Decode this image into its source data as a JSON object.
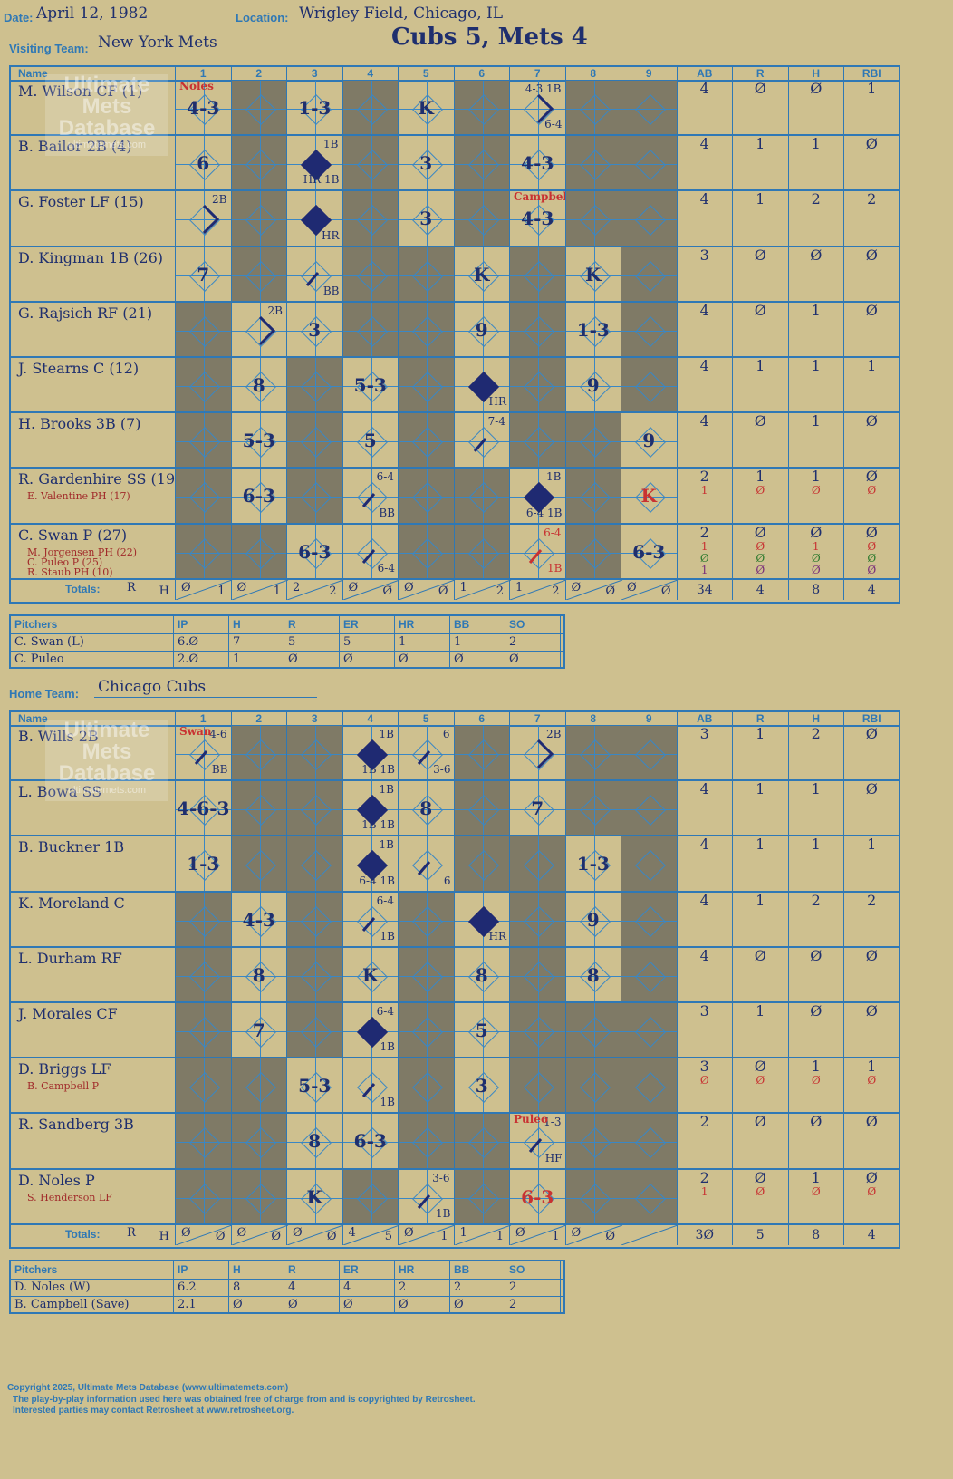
{
  "header": {
    "date_label": "Date:",
    "date": "April 12, 1982",
    "location_label": "Location:",
    "location": "Wrigley Field, Chicago, IL",
    "visiting_label": "Visiting Team:",
    "visiting_team": "New York Mets",
    "score_title": "Cubs 5, Mets 4",
    "home_label": "Home Team:",
    "home_team": "Chicago Cubs"
  },
  "columns": {
    "name": "Name",
    "innings": [
      "1",
      "2",
      "3",
      "4",
      "5",
      "6",
      "7",
      "8",
      "9"
    ],
    "stats": [
      "AB",
      "R",
      "H",
      "RBI"
    ]
  },
  "watermark": {
    "line1": "Ultimate",
    "line2": "Mets",
    "line3": "Database",
    "url": "ultimatemets.com"
  },
  "visitors": {
    "rows": [
      {
        "name": "M. Wilson CF (1)",
        "subs": [],
        "stats": [
          [
            "4"
          ],
          [
            "Ø"
          ],
          [
            "Ø"
          ],
          [
            "1"
          ]
        ]
      },
      {
        "name": "B. Bailor 2B (4)",
        "subs": [],
        "stats": [
          [
            "4"
          ],
          [
            "1"
          ],
          [
            "1"
          ],
          [
            "Ø"
          ]
        ]
      },
      {
        "name": "G. Foster LF (15)",
        "subs": [],
        "stats": [
          [
            "4"
          ],
          [
            "1"
          ],
          [
            "2"
          ],
          [
            "2"
          ]
        ]
      },
      {
        "name": "D. Kingman 1B (26)",
        "subs": [],
        "stats": [
          [
            "3"
          ],
          [
            "Ø"
          ],
          [
            "Ø"
          ],
          [
            "Ø"
          ]
        ]
      },
      {
        "name": "G. Rajsich RF (21)",
        "subs": [],
        "stats": [
          [
            "4"
          ],
          [
            "Ø"
          ],
          [
            "1"
          ],
          [
            "Ø"
          ]
        ]
      },
      {
        "name": "J. Stearns C (12)",
        "subs": [],
        "stats": [
          [
            "4"
          ],
          [
            "1"
          ],
          [
            "1"
          ],
          [
            "1"
          ]
        ]
      },
      {
        "name": "H. Brooks 3B (7)",
        "subs": [],
        "stats": [
          [
            "4"
          ],
          [
            "Ø"
          ],
          [
            "1"
          ],
          [
            "Ø"
          ]
        ]
      },
      {
        "name": "R. Gardenhire SS (19)",
        "subs": [
          "E. Valentine PH (17)"
        ],
        "stats": [
          [
            "2",
            "1"
          ],
          [
            "1",
            "Ø"
          ],
          [
            "1",
            "Ø"
          ],
          [
            "Ø",
            "Ø"
          ]
        ]
      },
      {
        "name": "C. Swan P (27)",
        "subs": [
          "M. Jorgensen PH (22)",
          "C. Puleo P (25)",
          "R. Staub PH (10)"
        ],
        "stats": [
          [
            "2",
            "1",
            "Ø",
            "1"
          ],
          [
            "Ø",
            "Ø",
            "Ø",
            "Ø"
          ],
          [
            "Ø",
            "1",
            "Ø",
            "Ø"
          ],
          [
            "Ø",
            "Ø",
            "Ø",
            "Ø"
          ]
        ]
      }
    ],
    "plays": [
      [
        {
          "t": "4-3",
          "n": "Noles"
        },
        {},
        {
          "t": "1-3"
        },
        {},
        {
          "t": "K"
        },
        {},
        {
          "s": "4-3 1B",
          "b": "6-4",
          "p": "2"
        },
        {},
        {}
      ],
      [
        {
          "t": "6"
        },
        {},
        {
          "f": true,
          "s": "1B",
          "b": "HR 1B"
        },
        {},
        {
          "t": "3"
        },
        {},
        {
          "t": "4-3"
        },
        {},
        {}
      ],
      [
        {
          "s": "2B",
          "p": "2"
        },
        {},
        {
          "f": true,
          "b": "HR"
        },
        {},
        {
          "t": "3"
        },
        {},
        {
          "t": "4-3",
          "n": "Campbell"
        },
        {},
        {}
      ],
      [
        {
          "t": "7"
        },
        {},
        {
          "b": "BB",
          "p": "1"
        },
        {},
        {},
        {
          "t": "K"
        },
        {},
        {
          "t": "K"
        },
        {}
      ],
      [
        {},
        {
          "s": "2B",
          "p": "2"
        },
        {
          "t": "3"
        },
        {},
        {},
        {
          "t": "9"
        },
        {},
        {
          "t": "1-3"
        },
        {}
      ],
      [
        {},
        {
          "t": "8"
        },
        {},
        {
          "t": "5-3"
        },
        {},
        {
          "f": true,
          "b": "HR"
        },
        {},
        {
          "t": "9"
        },
        {}
      ],
      [
        {},
        {
          "t": "5-3"
        },
        {},
        {
          "t": "5"
        },
        {},
        {
          "s": "7-4",
          "p": "1"
        },
        {},
        {},
        {
          "t": "9"
        }
      ],
      [
        {},
        {
          "t": "6-3"
        },
        {},
        {
          "s": "6-4",
          "b": "BB",
          "p": "1"
        },
        {},
        {},
        {
          "f": true,
          "s": "1B",
          "b": "6-4 1B"
        },
        {},
        {
          "t": "K",
          "r": true
        }
      ],
      [
        {},
        {},
        {
          "t": "6-3"
        },
        {
          "b": "6-4",
          "p": "1"
        },
        {},
        {},
        {
          "s": "6-4",
          "b": "1B",
          "p": "1",
          "red": true
        },
        {},
        {
          "t": "6-3"
        }
      ]
    ],
    "totals_label": "Totals:",
    "rh_r": "R",
    "rh_h": "H",
    "inning_totals": [
      [
        "Ø",
        "1"
      ],
      [
        "Ø",
        "1"
      ],
      [
        "2",
        "2"
      ],
      [
        "Ø",
        "Ø"
      ],
      [
        "Ø",
        "Ø"
      ],
      [
        "1",
        "2"
      ],
      [
        "1",
        "2"
      ],
      [
        "Ø",
        "Ø"
      ],
      [
        "Ø",
        "Ø"
      ]
    ],
    "totals": [
      "34",
      "4",
      "8",
      "4"
    ],
    "pitchers_label": "Pitchers",
    "pitcher_cols": [
      "IP",
      "H",
      "R",
      "ER",
      "HR",
      "BB",
      "SO"
    ],
    "pitchers": [
      {
        "name": "C. Swan (L)",
        "v": [
          "6.Ø",
          "7",
          "5",
          "5",
          "1",
          "1",
          "2"
        ]
      },
      {
        "name": "C. Puleo",
        "v": [
          "2.Ø",
          "1",
          "Ø",
          "Ø",
          "Ø",
          "Ø",
          "Ø"
        ]
      }
    ]
  },
  "home": {
    "rows": [
      {
        "name": "B. Wills 2B",
        "subs": [],
        "stats": [
          [
            "3"
          ],
          [
            "1"
          ],
          [
            "2"
          ],
          [
            "Ø"
          ]
        ]
      },
      {
        "name": "L. Bowa SS",
        "subs": [],
        "stats": [
          [
            "4"
          ],
          [
            "1"
          ],
          [
            "1"
          ],
          [
            "Ø"
          ]
        ]
      },
      {
        "name": "B. Buckner 1B",
        "subs": [],
        "stats": [
          [
            "4"
          ],
          [
            "1"
          ],
          [
            "1"
          ],
          [
            "1"
          ]
        ]
      },
      {
        "name": "K. Moreland C",
        "subs": [],
        "stats": [
          [
            "4"
          ],
          [
            "1"
          ],
          [
            "2"
          ],
          [
            "2"
          ]
        ]
      },
      {
        "name": "L. Durham RF",
        "subs": [],
        "stats": [
          [
            "4"
          ],
          [
            "Ø"
          ],
          [
            "Ø"
          ],
          [
            "Ø"
          ]
        ]
      },
      {
        "name": "J. Morales CF",
        "subs": [],
        "stats": [
          [
            "3"
          ],
          [
            "1"
          ],
          [
            "Ø"
          ],
          [
            "Ø"
          ]
        ]
      },
      {
        "name": "D. Briggs LF",
        "subs": [
          "B. Campbell P"
        ],
        "stats": [
          [
            "3",
            "Ø"
          ],
          [
            "Ø",
            "Ø"
          ],
          [
            "1",
            "Ø"
          ],
          [
            "1",
            "Ø"
          ]
        ]
      },
      {
        "name": "R. Sandberg 3B",
        "subs": [],
        "stats": [
          [
            "2"
          ],
          [
            "Ø"
          ],
          [
            "Ø"
          ],
          [
            "Ø"
          ]
        ]
      },
      {
        "name": "D. Noles P",
        "subs": [
          "S. Henderson LF"
        ],
        "stats": [
          [
            "2",
            "1"
          ],
          [
            "Ø",
            "Ø"
          ],
          [
            "1",
            "Ø"
          ],
          [
            "Ø",
            "Ø"
          ]
        ]
      }
    ],
    "plays": [
      [
        {
          "s": "4-6",
          "b": "BB",
          "p": "1",
          "n": "Swan"
        },
        {},
        {},
        {
          "f": true,
          "s": "1B",
          "b": "1B 1B"
        },
        {
          "s": "6",
          "b": "3-6",
          "p": "1"
        },
        {},
        {
          "s": "2B",
          "p": "2"
        },
        {},
        {}
      ],
      [
        {
          "t": "4-6-3"
        },
        {},
        {},
        {
          "f": true,
          "s": "1B",
          "b": "1B 1B"
        },
        {
          "t": "8"
        },
        {},
        {
          "t": "7"
        },
        {},
        {}
      ],
      [
        {
          "t": "1-3"
        },
        {},
        {},
        {
          "f": true,
          "s": "1B",
          "b": "6-4 1B"
        },
        {
          "b": "6",
          "p": "1"
        },
        {},
        {},
        {
          "t": "1-3"
        },
        {}
      ],
      [
        {},
        {
          "t": "4-3"
        },
        {},
        {
          "s": "6-4",
          "b": "1B",
          "p": "1"
        },
        {},
        {
          "f": true,
          "b": "HR"
        },
        {},
        {
          "t": "9"
        },
        {}
      ],
      [
        {},
        {
          "t": "8"
        },
        {},
        {
          "t": "K"
        },
        {},
        {
          "t": "8"
        },
        {},
        {
          "t": "8"
        },
        {}
      ],
      [
        {},
        {
          "t": "7"
        },
        {},
        {
          "f": true,
          "s": "6-4",
          "b": "1B"
        },
        {},
        {
          "t": "5"
        },
        {},
        {},
        {}
      ],
      [
        {},
        {},
        {
          "t": "5-3"
        },
        {
          "b": "1B",
          "p": "1"
        },
        {},
        {
          "t": "3"
        },
        {},
        {},
        {}
      ],
      [
        {},
        {},
        {
          "t": "8"
        },
        {
          "t": "6-3"
        },
        {},
        {},
        {
          "s": "1-3",
          "b": "HF",
          "p": "1",
          "n": "Puleo"
        },
        {},
        {}
      ],
      [
        {},
        {},
        {
          "t": "K"
        },
        {},
        {
          "s": "3-6",
          "b": "1B",
          "p": "1"
        },
        {},
        {
          "t": "6-3",
          "r": true
        },
        {},
        {}
      ]
    ],
    "totals_label": "Totals:",
    "rh_r": "R",
    "rh_h": "H",
    "inning_totals": [
      [
        "Ø",
        "Ø"
      ],
      [
        "Ø",
        "Ø"
      ],
      [
        "Ø",
        "Ø"
      ],
      [
        "4",
        "5"
      ],
      [
        "Ø",
        "1"
      ],
      [
        "1",
        "1"
      ],
      [
        "Ø",
        "1"
      ],
      [
        "Ø",
        "Ø"
      ],
      [
        "",
        ""
      ]
    ],
    "totals": [
      "3Ø",
      "5",
      "8",
      "4"
    ],
    "pitchers_label": "Pitchers",
    "pitcher_cols": [
      "IP",
      "H",
      "R",
      "ER",
      "HR",
      "BB",
      "SO"
    ],
    "pitchers": [
      {
        "name": "D. Noles (W)",
        "v": [
          "6.2",
          "8",
          "4",
          "4",
          "2",
          "2",
          "2"
        ]
      },
      {
        "name": "B. Campbell (Save)",
        "v": [
          "2.1",
          "Ø",
          "Ø",
          "Ø",
          "Ø",
          "Ø",
          "2"
        ]
      }
    ]
  },
  "footer": {
    "line1": "Copyright 2025, Ultimate Mets Database (www.ultimatemets.com)",
    "line2": "The play-by-play information used here was obtained free of charge from and is copyrighted by Retrosheet.",
    "line3": "Interested parties may contact Retrosheet at www.retrosheet.org."
  }
}
